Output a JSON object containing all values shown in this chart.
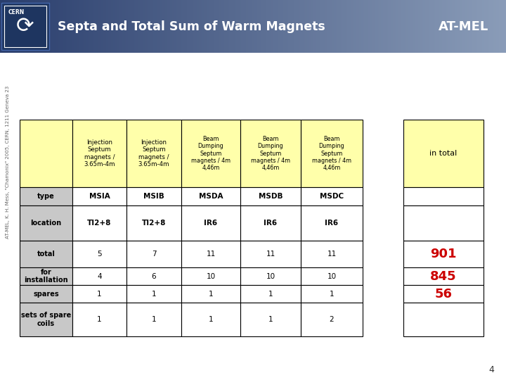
{
  "title": "Septa and Total Sum of Warm Magnets",
  "title_right": "AT-MEL",
  "slide_bg": "#ffffff",
  "content_bg": "#ffffff",
  "header_color_left": "#2b3f6e",
  "header_color_right": "#8a9dc0",
  "yellow": "#ffffaa",
  "gray_label": "#c0c0c0",
  "white": "#ffffff",
  "red": "#cc0000",
  "black": "#000000",
  "watermark_text": "AT-MEL, K. H. Mess, \"Chamonix\" 2005, CERN, 1211 Geneva 23",
  "page_num": "4",
  "col_headers_inj": "Injection\nSeptum\nmagnets /\n3.65m-4m",
  "col_headers_beam": "Beam\nDumping\nSeptum\nmagnets / 4m\n4,46m",
  "in_total_label": "in total",
  "rows": [
    {
      "label": "type",
      "label_bg": "#c8c8c8",
      "values": [
        "MSIA",
        "MSIB",
        "MSDA",
        "MSDB",
        "MSDC"
      ],
      "val_bold": true,
      "right": ""
    },
    {
      "label": "location",
      "label_bg": "#c8c8c8",
      "values": [
        "TI2+8",
        "TI2+8",
        "IR6",
        "IR6",
        "IR6"
      ],
      "val_bold": true,
      "right": ""
    },
    {
      "label": "total",
      "label_bg": "#c8c8c8",
      "values": [
        "5",
        "7",
        "11",
        "11",
        "11"
      ],
      "val_bold": false,
      "right": "901"
    },
    {
      "label": "for\ninstallation",
      "label_bg": "#c8c8c8",
      "values": [
        "4",
        "6",
        "10",
        "10",
        "10"
      ],
      "val_bold": false,
      "right": "845"
    },
    {
      "label": "spares",
      "label_bg": "#c8c8c8",
      "values": [
        "1",
        "1",
        "1",
        "1",
        "1"
      ],
      "val_bold": false,
      "right": "56"
    },
    {
      "label": "sets of spare\ncoils",
      "label_bg": "#c8c8c8",
      "values": [
        "1",
        "1",
        "1",
        "1",
        "2"
      ],
      "val_bold": false,
      "right": ""
    }
  ]
}
